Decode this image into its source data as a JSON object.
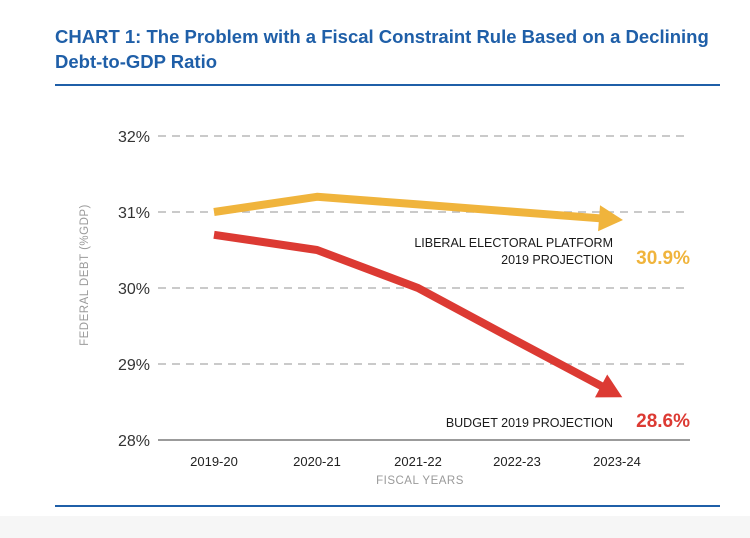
{
  "title": "CHART 1: The Problem with a Fiscal Constraint Rule Based on a Declining Debt-to-GDP Ratio",
  "chart_data": {
    "type": "line",
    "xlabel": "FISCAL YEARS",
    "ylabel": "FEDERAL DEBT (%GDP)",
    "categories": [
      "2019-20",
      "2020-21",
      "2021-22",
      "2022-23",
      "2023-24"
    ],
    "ylim": [
      28,
      32
    ],
    "yticks": [
      "32%",
      "31%",
      "30%",
      "29%",
      "28%"
    ],
    "grid": true,
    "series": [
      {
        "name": "LIBERAL ELECTORAL PLATFORM 2019 PROJECTION",
        "label_lines": [
          "LIBERAL ELECTORAL PLATFORM",
          "2019 PROJECTION"
        ],
        "values": [
          31.0,
          31.2,
          31.1,
          31.0,
          30.9
        ],
        "end_label": "30.9%",
        "color": "#f0b43c"
      },
      {
        "name": "BUDGET 2019 PROJECTION",
        "label_lines": [
          "BUDGET 2019 PROJECTION"
        ],
        "values": [
          30.7,
          30.5,
          30.0,
          29.3,
          28.6
        ],
        "end_label": "28.6%",
        "color": "#dc3a33"
      }
    ]
  }
}
